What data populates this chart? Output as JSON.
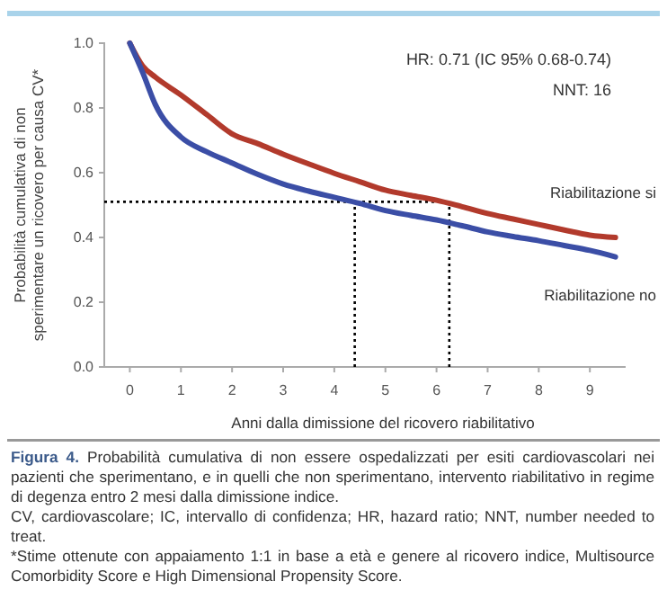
{
  "chart_data": {
    "type": "line",
    "title": "Figura 4.",
    "subtitle": "Probabilità cumulativa di non essere ospedalizzati per esiti cardiovascolari nei pazienti che sperimentano, e in quelli che non sperimentano, intervento riabilitativo in regime di degenza entro 2 mesi dalla dimissione indice.",
    "xlabel": "Anni dalla dimissione del ricovero riabilitativo",
    "ylabel": "Probabilità cumulativa di non sperimentare un ricovero per causa CV*",
    "annotations": [
      "HR: 0.71 (IC 95% 0.68-0.74)",
      "NNT: 16",
      "CV, cardiovascolare; IC, intervallo di confidenza; HR, hazard ratio; NNT, number needed to treat.",
      "*Stime ottenute con appaiamento 1:1 in base a età e genere al ricovero indice, Multisource Comorbidity Score e High Dimensional Propensity Score."
    ],
    "x": [
      0,
      0.25,
      0.5,
      1,
      1.5,
      2,
      2.5,
      3,
      3.5,
      4,
      4.5,
      5,
      5.5,
      6,
      6.5,
      7,
      7.5,
      8,
      8.5,
      9,
      9.5
    ],
    "series": [
      {
        "name": "Riabilitazione si",
        "color": "#b23a2c",
        "values": [
          1.0,
          0.93,
          0.895,
          0.84,
          0.78,
          0.72,
          0.69,
          0.657,
          0.627,
          0.598,
          0.572,
          0.546,
          0.53,
          0.515,
          0.495,
          0.474,
          0.457,
          0.44,
          0.423,
          0.407,
          0.4
        ]
      },
      {
        "name": "Riabilitazione no",
        "color": "#3b4ea6",
        "values": [
          1.0,
          0.91,
          0.81,
          0.71,
          0.665,
          0.63,
          0.595,
          0.565,
          0.543,
          0.524,
          0.505,
          0.483,
          0.468,
          0.454,
          0.436,
          0.417,
          0.403,
          0.39,
          0.375,
          0.36,
          0.34
        ]
      }
    ],
    "xlim": [
      -0.5,
      9.7
    ],
    "ylim": [
      0,
      1.0
    ],
    "xticks": [
      0,
      1,
      2,
      3,
      4,
      5,
      6,
      7,
      8,
      9
    ],
    "yticks": [
      {
        "value": 0,
        "label": "0.0"
      },
      {
        "value": 0.2,
        "label": "0.2"
      },
      {
        "value": 0.4,
        "label": "0.4"
      },
      {
        "value": 0.6,
        "label": "0.6"
      },
      {
        "value": 0.8,
        "label": "0.8"
      },
      {
        "value": 1.0,
        "label": "1.0"
      }
    ],
    "ref_lines": [
      {
        "axis": "y",
        "value": 0.51,
        "line_style": "dotted",
        "color": "#000000"
      },
      {
        "axis": "x",
        "value": 4.4,
        "line_style": "dotted",
        "color": "#000000"
      },
      {
        "axis": "x",
        "value": 6.25,
        "line_style": "dotted",
        "color": "#000000"
      }
    ],
    "grid": false,
    "legend": false,
    "marker": "none",
    "line_style": "solid"
  }
}
